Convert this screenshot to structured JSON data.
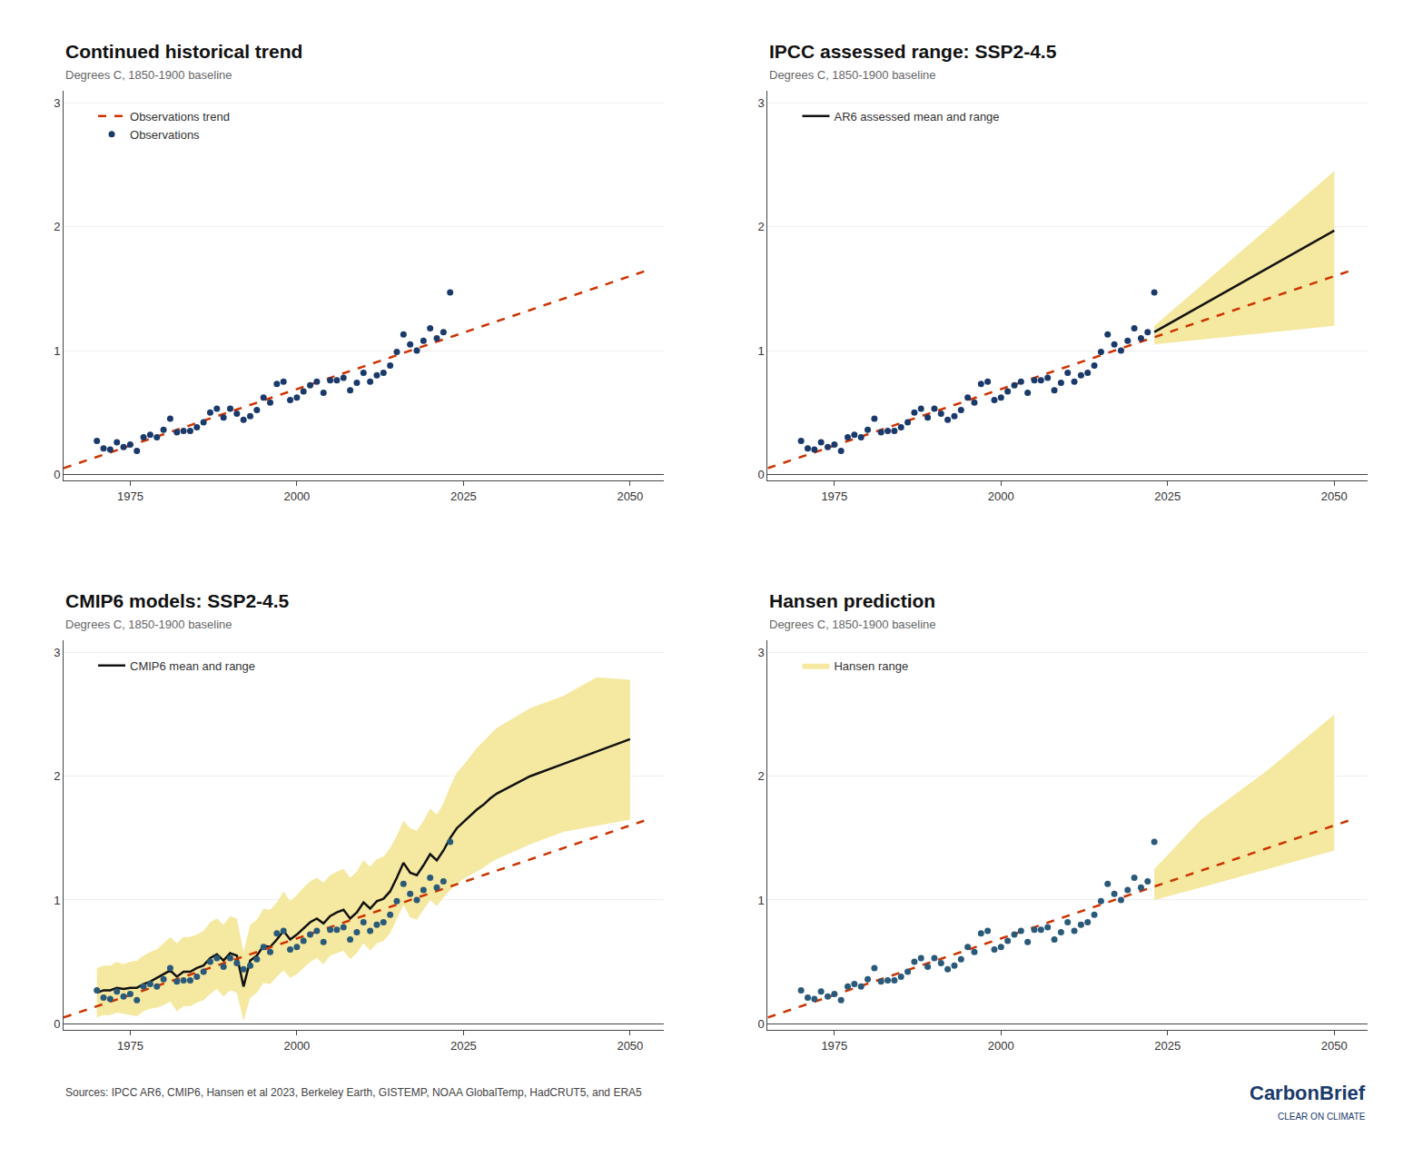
{
  "chart_data": [
    {
      "type": "line",
      "title": "Continued historical trend",
      "subtitle": "Degrees C, 1850-1900 baseline",
      "xlim": [
        1965,
        2055
      ],
      "ylim": [
        -0.05,
        3.1
      ],
      "xticks": [
        1975,
        2000,
        2025,
        2050
      ],
      "yticks": [
        0,
        1,
        2,
        3
      ],
      "grid": true,
      "legend": "upper left",
      "series": [
        {
          "name": "Observations trend",
          "type": "line",
          "line_style": "dashed",
          "color": "#cc3300",
          "x": [
            1965,
            2053
          ],
          "values": [
            0.049566,
            1.65661
          ]
        },
        {
          "name": "Observations",
          "type": "scatter",
          "marker": "circle",
          "color": "#1a3a6b",
          "x": [
            1970,
            1971,
            1972,
            1973,
            1974,
            1975,
            1976,
            1977,
            1978,
            1979,
            1980,
            1981,
            1982,
            1983,
            1984,
            1985,
            1986,
            1987,
            1988,
            1989,
            1990,
            1991,
            1992,
            1993,
            1994,
            1995,
            1996,
            1997,
            1998,
            1999,
            2000,
            2001,
            2002,
            2003,
            2004,
            2005,
            2006,
            2007,
            2008,
            2009,
            2010,
            2011,
            2012,
            2013,
            2014,
            2015,
            2016,
            2017,
            2018,
            2019,
            2020,
            2021,
            2022,
            2023
          ],
          "values": [
            0.27,
            0.21,
            0.2,
            0.26,
            0.22,
            0.24,
            0.19,
            0.3,
            0.32,
            0.3,
            0.36,
            0.45,
            0.34,
            0.35,
            0.35,
            0.38,
            0.42,
            0.5,
            0.53,
            0.46,
            0.53,
            0.49,
            0.44,
            0.47,
            0.52,
            0.62,
            0.58,
            0.73,
            0.75,
            0.6,
            0.62,
            0.67,
            0.72,
            0.75,
            0.66,
            0.76,
            0.76,
            0.78,
            0.68,
            0.74,
            0.82,
            0.75,
            0.8,
            0.82,
            0.88,
            0.99,
            1.13,
            1.05,
            1.0,
            1.08,
            1.18,
            1.1,
            1.15,
            1.47
          ]
        }
      ]
    },
    {
      "type": "line",
      "title": "IPCC assessed range: SSP2-4.5",
      "subtitle": "Degrees C, 1850-1900 baseline",
      "xlim": [
        1965,
        2055
      ],
      "ylim": [
        -0.05,
        3.1
      ],
      "xticks": [
        1975,
        2000,
        2025,
        2050
      ],
      "yticks": [
        0,
        1,
        2,
        3
      ],
      "grid": true,
      "legend": "upper left",
      "series": [
        {
          "type": "band",
          "color": "#f5e8a0",
          "x": [
            2023,
            2050
          ],
          "low": [
            1.05,
            1.2
          ],
          "high": [
            1.2,
            2.45
          ]
        },
        {
          "name": "AR6 assessed mean and range",
          "type": "line",
          "line_style": "solid",
          "color": "#111111",
          "x": [
            2023,
            2050
          ],
          "values": [
            1.15,
            1.97
          ]
        },
        {
          "type": "line",
          "line_style": "dashed",
          "color": "#cc3300",
          "x": [
            1965,
            2053
          ],
          "values": [
            0.049566,
            1.65661
          ]
        },
        {
          "type": "scatter",
          "marker": "circle",
          "color": "#1a3a6b",
          "x": [
            1970,
            1971,
            1972,
            1973,
            1974,
            1975,
            1976,
            1977,
            1978,
            1979,
            1980,
            1981,
            1982,
            1983,
            1984,
            1985,
            1986,
            1987,
            1988,
            1989,
            1990,
            1991,
            1992,
            1993,
            1994,
            1995,
            1996,
            1997,
            1998,
            1999,
            2000,
            2001,
            2002,
            2003,
            2004,
            2005,
            2006,
            2007,
            2008,
            2009,
            2010,
            2011,
            2012,
            2013,
            2014,
            2015,
            2016,
            2017,
            2018,
            2019,
            2020,
            2021,
            2022,
            2023
          ],
          "values": [
            0.27,
            0.21,
            0.2,
            0.26,
            0.22,
            0.24,
            0.19,
            0.3,
            0.32,
            0.3,
            0.36,
            0.45,
            0.34,
            0.35,
            0.35,
            0.38,
            0.42,
            0.5,
            0.53,
            0.46,
            0.53,
            0.49,
            0.44,
            0.47,
            0.52,
            0.62,
            0.58,
            0.73,
            0.75,
            0.6,
            0.62,
            0.67,
            0.72,
            0.75,
            0.66,
            0.76,
            0.76,
            0.78,
            0.68,
            0.74,
            0.82,
            0.75,
            0.8,
            0.82,
            0.88,
            0.99,
            1.13,
            1.05,
            1.0,
            1.08,
            1.18,
            1.1,
            1.15,
            1.47
          ]
        }
      ]
    },
    {
      "type": "line",
      "title": "CMIP6 models: SSP2-4.5",
      "subtitle": "Degrees C, 1850-1900 baseline",
      "xlim": [
        1965,
        2055
      ],
      "ylim": [
        -0.05,
        3.1
      ],
      "xticks": [
        1975,
        2000,
        2025,
        2050
      ],
      "yticks": [
        0,
        1,
        2,
        3
      ],
      "grid": true,
      "legend": "upper left",
      "series": [
        {
          "type": "band",
          "color": "#f5e8a0",
          "x": [
            1970,
            1971,
            1972,
            1973,
            1974,
            1975,
            1976,
            1977,
            1978,
            1979,
            1980,
            1981,
            1982,
            1983,
            1984,
            1985,
            1986,
            1987,
            1988,
            1989,
            1990,
            1991,
            1992,
            1993,
            1994,
            1995,
            1996,
            1997,
            1998,
            1999,
            2000,
            2001,
            2002,
            2003,
            2004,
            2005,
            2006,
            2007,
            2008,
            2009,
            2010,
            2011,
            2012,
            2013,
            2014,
            2015,
            2016,
            2017,
            2018,
            2019,
            2020,
            2021,
            2022,
            2023,
            2024,
            2025,
            2026,
            2027,
            2028,
            2029,
            2030,
            2035,
            2040,
            2045,
            2050
          ],
          "low": [
            0.05,
            0.07,
            0.07,
            0.09,
            0.08,
            0.07,
            0.06,
            0.1,
            0.12,
            0.13,
            0.15,
            0.18,
            0.1,
            0.14,
            0.14,
            0.17,
            0.19,
            0.24,
            0.28,
            0.22,
            0.27,
            0.25,
            0.02,
            0.21,
            0.25,
            0.33,
            0.32,
            0.38,
            0.43,
            0.37,
            0.4,
            0.45,
            0.5,
            0.53,
            0.48,
            0.55,
            0.57,
            0.59,
            0.52,
            0.57,
            0.65,
            0.59,
            0.65,
            0.67,
            0.73,
            0.84,
            0.96,
            0.86,
            0.84,
            0.92,
            1.0,
            0.95,
            1.02,
            1.08,
            1.13,
            1.17,
            1.2,
            1.23,
            1.26,
            1.3,
            1.33,
            1.45,
            1.55,
            1.6,
            1.65
          ],
          "high": [
            0.45,
            0.47,
            0.47,
            0.5,
            0.48,
            0.5,
            0.51,
            0.55,
            0.58,
            0.6,
            0.65,
            0.7,
            0.65,
            0.7,
            0.7,
            0.72,
            0.75,
            0.82,
            0.85,
            0.8,
            0.87,
            0.85,
            0.58,
            0.8,
            0.84,
            0.93,
            0.92,
            0.98,
            1.07,
            0.99,
            1.04,
            1.1,
            1.15,
            1.18,
            1.14,
            1.2,
            1.23,
            1.25,
            1.18,
            1.23,
            1.32,
            1.27,
            1.33,
            1.35,
            1.42,
            1.52,
            1.64,
            1.58,
            1.56,
            1.64,
            1.74,
            1.69,
            1.78,
            1.92,
            2.03,
            2.09,
            2.16,
            2.23,
            2.28,
            2.34,
            2.39,
            2.55,
            2.65,
            2.8,
            2.78
          ]
        },
        {
          "name": "CMIP6 mean and range",
          "type": "line",
          "line_style": "solid",
          "color": "#111111",
          "x": [
            1970,
            1971,
            1972,
            1973,
            1974,
            1975,
            1976,
            1977,
            1978,
            1979,
            1980,
            1981,
            1982,
            1983,
            1984,
            1985,
            1986,
            1987,
            1988,
            1989,
            1990,
            1991,
            1992,
            1993,
            1994,
            1995,
            1996,
            1997,
            1998,
            1999,
            2000,
            2001,
            2002,
            2003,
            2004,
            2005,
            2006,
            2007,
            2008,
            2009,
            2010,
            2011,
            2012,
            2013,
            2014,
            2015,
            2016,
            2017,
            2018,
            2019,
            2020,
            2021,
            2022,
            2023,
            2024,
            2025,
            2026,
            2027,
            2028,
            2029,
            2030,
            2035,
            2040,
            2045,
            2050
          ],
          "values": [
            0.25,
            0.27,
            0.27,
            0.29,
            0.28,
            0.29,
            0.29,
            0.32,
            0.34,
            0.37,
            0.4,
            0.43,
            0.38,
            0.42,
            0.42,
            0.45,
            0.47,
            0.53,
            0.56,
            0.51,
            0.57,
            0.55,
            0.3,
            0.51,
            0.55,
            0.63,
            0.62,
            0.68,
            0.75,
            0.68,
            0.72,
            0.77,
            0.82,
            0.85,
            0.81,
            0.87,
            0.9,
            0.92,
            0.85,
            0.9,
            0.98,
            0.93,
            0.99,
            1.01,
            1.07,
            1.18,
            1.3,
            1.22,
            1.2,
            1.28,
            1.37,
            1.32,
            1.4,
            1.5,
            1.58,
            1.63,
            1.68,
            1.73,
            1.77,
            1.82,
            1.86,
            2.0,
            2.1,
            2.2,
            2.3
          ]
        },
        {
          "type": "line",
          "line_style": "dashed",
          "color": "#cc3300",
          "x": [
            1965,
            2053
          ],
          "values": [
            0.049566,
            1.65661
          ]
        },
        {
          "type": "scatter",
          "marker": "circle",
          "color": "#2a5a7a",
          "x": [
            1970,
            1971,
            1972,
            1973,
            1974,
            1975,
            1976,
            1977,
            1978,
            1979,
            1980,
            1981,
            1982,
            1983,
            1984,
            1985,
            1986,
            1987,
            1988,
            1989,
            1990,
            1991,
            1992,
            1993,
            1994,
            1995,
            1996,
            1997,
            1998,
            1999,
            2000,
            2001,
            2002,
            2003,
            2004,
            2005,
            2006,
            2007,
            2008,
            2009,
            2010,
            2011,
            2012,
            2013,
            2014,
            2015,
            2016,
            2017,
            2018,
            2019,
            2020,
            2021,
            2022,
            2023
          ],
          "values": [
            0.27,
            0.21,
            0.2,
            0.26,
            0.22,
            0.24,
            0.19,
            0.3,
            0.32,
            0.3,
            0.36,
            0.45,
            0.34,
            0.35,
            0.35,
            0.38,
            0.42,
            0.5,
            0.53,
            0.46,
            0.53,
            0.49,
            0.44,
            0.47,
            0.52,
            0.62,
            0.58,
            0.73,
            0.75,
            0.6,
            0.62,
            0.67,
            0.72,
            0.75,
            0.66,
            0.76,
            0.76,
            0.78,
            0.68,
            0.74,
            0.82,
            0.75,
            0.8,
            0.82,
            0.88,
            0.99,
            1.13,
            1.05,
            1.0,
            1.08,
            1.18,
            1.1,
            1.15,
            1.47
          ]
        }
      ]
    },
    {
      "type": "line",
      "title": "Hansen prediction",
      "subtitle": "Degrees C, 1850-1900 baseline",
      "xlim": [
        1965,
        2055
      ],
      "ylim": [
        -0.05,
        3.1
      ],
      "xticks": [
        1975,
        2000,
        2025,
        2050
      ],
      "yticks": [
        0,
        1,
        2,
        3
      ],
      "grid": true,
      "legend": "upper left",
      "series": [
        {
          "name": "Hansen range",
          "type": "band",
          "color": "#f5e8a0",
          "x": [
            2023,
            2030,
            2040,
            2050
          ],
          "low": [
            1.0,
            1.1,
            1.25,
            1.4
          ],
          "high": [
            1.25,
            1.65,
            2.05,
            2.5
          ]
        },
        {
          "type": "line",
          "line_style": "dashed",
          "color": "#cc3300",
          "x": [
            1965,
            2053
          ],
          "values": [
            0.049566,
            1.65661
          ]
        },
        {
          "type": "scatter",
          "marker": "circle",
          "color": "#2a5a7a",
          "x": [
            1970,
            1971,
            1972,
            1973,
            1974,
            1975,
            1976,
            1977,
            1978,
            1979,
            1980,
            1981,
            1982,
            1983,
            1984,
            1985,
            1986,
            1987,
            1988,
            1989,
            1990,
            1991,
            1992,
            1993,
            1994,
            1995,
            1996,
            1997,
            1998,
            1999,
            2000,
            2001,
            2002,
            2003,
            2004,
            2005,
            2006,
            2007,
            2008,
            2009,
            2010,
            2011,
            2012,
            2013,
            2014,
            2015,
            2016,
            2017,
            2018,
            2019,
            2020,
            2021,
            2022,
            2023
          ],
          "values": [
            0.27,
            0.21,
            0.2,
            0.26,
            0.22,
            0.24,
            0.19,
            0.3,
            0.32,
            0.3,
            0.36,
            0.45,
            0.34,
            0.35,
            0.35,
            0.38,
            0.42,
            0.5,
            0.53,
            0.46,
            0.53,
            0.49,
            0.44,
            0.47,
            0.52,
            0.62,
            0.58,
            0.73,
            0.75,
            0.6,
            0.62,
            0.67,
            0.72,
            0.75,
            0.66,
            0.76,
            0.76,
            0.78,
            0.68,
            0.74,
            0.82,
            0.75,
            0.8,
            0.82,
            0.88,
            0.99,
            1.13,
            1.05,
            1.0,
            1.08,
            1.18,
            1.1,
            1.15,
            1.47
          ]
        }
      ]
    }
  ],
  "annotations": [
    "Sources: IPCC AR6, CMIP6, Hansen et al 2023, Berkeley Earth, GISTEMP, NOAA GlobalTemp, HadCRUT5, and ERA5",
    "CarbonBrief",
    "CLEAR ON CLIMATE"
  ]
}
